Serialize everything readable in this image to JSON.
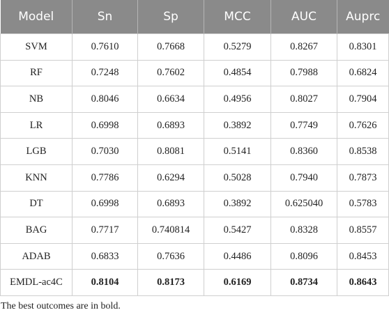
{
  "table": {
    "columns": [
      "Model",
      "Sn",
      "Sp",
      "MCC",
      "AUC",
      "Auprc"
    ],
    "rows": [
      [
        "SVM",
        "0.7610",
        "0.7668",
        "0.5279",
        "0.8267",
        "0.8301"
      ],
      [
        "RF",
        "0.7248",
        "0.7602",
        "0.4854",
        "0.7988",
        "0.6824"
      ],
      [
        "NB",
        "0.8046",
        "0.6634",
        "0.4956",
        "0.8027",
        "0.7904"
      ],
      [
        "LR",
        "0.6998",
        "0.6893",
        "0.3892",
        "0.7749",
        "0.7626"
      ],
      [
        "LGB",
        "0.7030",
        "0.8081",
        "0.5141",
        "0.8360",
        "0.8538"
      ],
      [
        "KNN",
        "0.7786",
        "0.6294",
        "0.5028",
        "0.7940",
        "0.7873"
      ],
      [
        "DT",
        "0.6998",
        "0.6893",
        "0.3892",
        "0.625040",
        "0.5783"
      ],
      [
        "BAG",
        "0.7717",
        "0.740814",
        "0.5427",
        "0.8328",
        "0.8557"
      ],
      [
        "ADAB",
        "0.6833",
        "0.7636",
        "0.4486",
        "0.8096",
        "0.8453"
      ],
      [
        "EMDL-ac4C",
        "0.8104",
        "0.8173",
        "0.6169",
        "0.8734",
        "0.8643"
      ]
    ]
  },
  "footnote": "The best outcomes are in bold."
}
